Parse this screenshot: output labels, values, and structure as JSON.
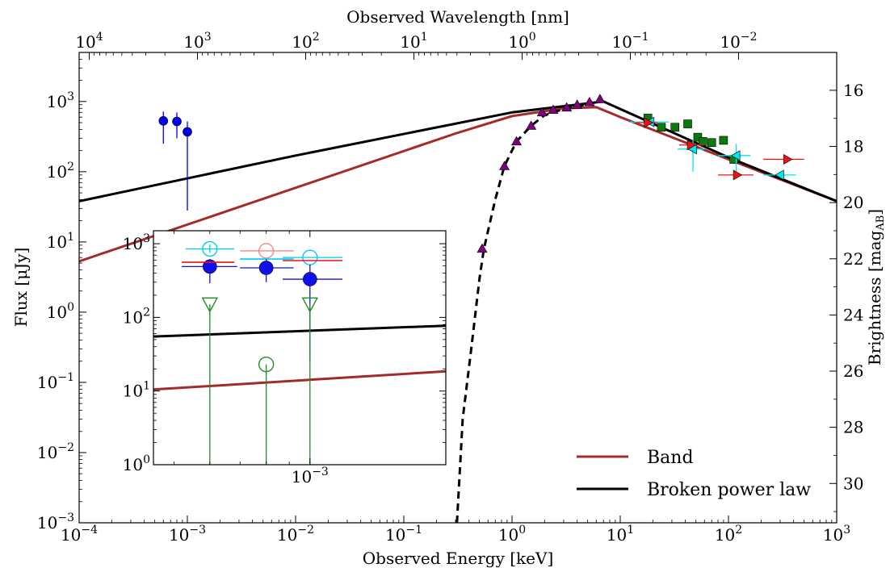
{
  "chart_data": {
    "type": "scatter",
    "title": "",
    "xlabel": "Observed Energy [keV]",
    "ylabel": "Flux [μJy]",
    "x2label": "Observed Wavelength [nm]",
    "y2label": "Brightness [mag",
    "y2label_sub": "AB",
    "y2label_close": "]",
    "xscale": "log",
    "yscale": "log",
    "xlim": [
      0.0001,
      1000
    ],
    "ylim": [
      0.001,
      5000
    ],
    "x_ticks": [
      {
        "value": 0.0001,
        "base": "10",
        "exp": "−4"
      },
      {
        "value": 0.001,
        "base": "10",
        "exp": "−3"
      },
      {
        "value": 0.01,
        "base": "10",
        "exp": "−2"
      },
      {
        "value": 0.1,
        "base": "10",
        "exp": "−1"
      },
      {
        "value": 1,
        "base": "10",
        "exp": "0"
      },
      {
        "value": 10,
        "base": "10",
        "exp": "1"
      },
      {
        "value": 100,
        "base": "10",
        "exp": "2"
      },
      {
        "value": 1000,
        "base": "10",
        "exp": "3"
      }
    ],
    "y_ticks": [
      {
        "value": 0.001,
        "base": "10",
        "exp": "−3"
      },
      {
        "value": 0.01,
        "base": "10",
        "exp": "−2"
      },
      {
        "value": 0.1,
        "base": "10",
        "exp": "−1"
      },
      {
        "value": 1,
        "base": "10",
        "exp": "0"
      },
      {
        "value": 10,
        "base": "10",
        "exp": "1"
      },
      {
        "value": 100,
        "base": "10",
        "exp": "2"
      },
      {
        "value": 1000,
        "base": "10",
        "exp": "3"
      }
    ],
    "wavelength_ticks_nm": [
      {
        "value": 10000,
        "base": "10",
        "exp": "4"
      },
      {
        "value": 1000,
        "base": "10",
        "exp": "3"
      },
      {
        "value": 100,
        "base": "10",
        "exp": "2"
      },
      {
        "value": 10,
        "base": "10",
        "exp": "1"
      },
      {
        "value": 1,
        "base": "10",
        "exp": "0"
      },
      {
        "value": 0.1,
        "base": "10",
        "exp": "−1"
      },
      {
        "value": 0.01,
        "base": "10",
        "exp": "−2"
      }
    ],
    "mag_ticks": [
      16,
      18,
      20,
      22,
      24,
      26,
      28,
      30
    ],
    "legend_position": "lower-right",
    "series": [
      {
        "name": "Band",
        "kind": "line",
        "color": "#a52a2a",
        "points": [
          [
            0.0001,
            5.3
          ],
          [
            0.3,
            350
          ],
          [
            1,
            620
          ],
          [
            3,
            800
          ],
          [
            6,
            830
          ],
          [
            10,
            600
          ],
          [
            100,
            150
          ],
          [
            1000,
            38
          ]
        ]
      },
      {
        "name": "Broken power law",
        "kind": "line",
        "color": "#000000",
        "points": [
          [
            0.0001,
            38
          ],
          [
            0.01,
            170
          ],
          [
            1,
            700
          ],
          [
            7,
            1000
          ],
          [
            100,
            160
          ],
          [
            1000,
            38
          ]
        ]
      },
      {
        "kind": "dashed-line",
        "color": "#000000",
        "points": [
          [
            0.31,
            0.001
          ],
          [
            0.35,
            0.03
          ],
          [
            0.42,
            0.3
          ],
          [
            0.5,
            3
          ],
          [
            0.55,
            8
          ],
          [
            0.7,
            40
          ],
          [
            0.85,
            120
          ],
          [
            1.1,
            270
          ],
          [
            1.5,
            450
          ],
          [
            2,
            640
          ],
          [
            3,
            780
          ],
          [
            5,
            920
          ],
          [
            6.5,
            1000
          ]
        ]
      },
      {
        "kind": "points",
        "marker": "circle",
        "color": "#0000ee",
        "points": [
          {
            "x": 0.0006,
            "y": 530,
            "ylo": 250,
            "yhi": 720
          },
          {
            "x": 0.0008,
            "y": 520,
            "ylo": 300,
            "yhi": 700
          },
          {
            "x": 0.001,
            "y": 370,
            "ylo": 28,
            "yhi": 520
          }
        ]
      },
      {
        "kind": "points",
        "marker": "triangle-up",
        "color": "#800080",
        "points": [
          {
            "x": 0.53,
            "y": 8
          },
          {
            "x": 0.85,
            "y": 120
          },
          {
            "x": 1.1,
            "y": 270
          },
          {
            "x": 1.5,
            "y": 450
          },
          {
            "x": 1.9,
            "y": 700
          },
          {
            "x": 2.4,
            "y": 760
          },
          {
            "x": 3.2,
            "y": 820
          },
          {
            "x": 4,
            "y": 900
          },
          {
            "x": 5.2,
            "y": 980
          },
          {
            "x": 6.5,
            "y": 1080
          }
        ]
      },
      {
        "kind": "points",
        "marker": "square",
        "color": "#0a7a0a",
        "points": [
          {
            "x": 18,
            "y": 580
          },
          {
            "x": 24,
            "y": 430
          },
          {
            "x": 32,
            "y": 430
          },
          {
            "x": 42,
            "y": 480
          },
          {
            "x": 52,
            "y": 310
          },
          {
            "x": 58,
            "y": 270
          },
          {
            "x": 70,
            "y": 260
          },
          {
            "x": 90,
            "y": 280
          },
          {
            "x": 112,
            "y": 150
          }
        ]
      },
      {
        "kind": "points",
        "marker": "triangle-left",
        "color": "#00e5ee",
        "points": [
          {
            "x": 19,
            "y": 510,
            "xlo": 12,
            "xhi": 28
          },
          {
            "x": 47,
            "y": 210,
            "xlo": 34,
            "xhi": 60,
            "ylo": 100,
            "yhi": 280
          },
          {
            "x": 118,
            "y": 170,
            "xlo": 80,
            "xhi": 160,
            "ylo": 90,
            "yhi": 250
          },
          {
            "x": 300,
            "y": 90,
            "xlo": 210,
            "xhi": 420
          }
        ]
      },
      {
        "kind": "points",
        "marker": "triangle-right",
        "color": "#ee1111",
        "points": [
          {
            "x": 18,
            "y": 500,
            "xlo": 14,
            "xhi": 22
          },
          {
            "x": 45,
            "y": 240,
            "xlo": 35,
            "xhi": 60
          },
          {
            "x": 120,
            "y": 90,
            "xlo": 80,
            "xhi": 170
          },
          {
            "x": 350,
            "y": 150,
            "xlo": 210,
            "xhi": 500
          }
        ]
      }
    ],
    "inset": {
      "xscale": "log",
      "yscale": "log",
      "xlim": [
        0.00045,
        0.002
      ],
      "ylim": [
        1,
        1500
      ],
      "x_tick_label": {
        "value": 0.001,
        "base": "10",
        "exp": "−3"
      },
      "y_ticks": [
        {
          "value": 1,
          "base": "10",
          "exp": "0"
        },
        {
          "value": 10,
          "base": "10",
          "exp": "1"
        },
        {
          "value": 100,
          "base": "10",
          "exp": "2"
        },
        {
          "value": 1000,
          "base": "10",
          "exp": "3"
        }
      ],
      "lines": [
        {
          "name": "Broken power law",
          "color": "#000000",
          "points": [
            [
              0.00045,
              55
            ],
            [
              0.002,
              77
            ]
          ]
        },
        {
          "name": "Band",
          "color": "#a52a2a",
          "points": [
            [
              0.00045,
              10.5
            ],
            [
              0.002,
              18.5
            ]
          ]
        }
      ],
      "points": [
        {
          "x": 0.0006,
          "y": 850,
          "marker": "open-circle",
          "color": "#00ccee",
          "xlo": 0.00053,
          "xhi": 0.00068,
          "ylo": 750,
          "yhi": 980
        },
        {
          "x": 0.0006,
          "y": 490,
          "marker": "circle",
          "color": "#1010ee",
          "xlo": 0.00052,
          "xhi": 0.00069,
          "ylo": 290,
          "yhi": 620
        },
        {
          "x": 0.0006,
          "y": 560,
          "marker": "bar",
          "color": "#ee1111",
          "xlo": 0.00052,
          "xhi": 0.00068
        },
        {
          "x": 0.0006,
          "y": 150,
          "marker": "open-triangle-down",
          "color": "#228b22",
          "ylo": 1
        },
        {
          "x": 0.0008,
          "y": 800,
          "marker": "open-circle",
          "color": "#ee8888",
          "xlo": 0.0007,
          "xhi": 0.00092
        },
        {
          "x": 0.0008,
          "y": 620,
          "marker": "bar",
          "color": "#00ccee",
          "xlo": 0.0007,
          "xhi": 0.00092
        },
        {
          "x": 0.0008,
          "y": 470,
          "marker": "circle",
          "color": "#1010ee",
          "xlo": 0.0007,
          "xhi": 0.00092,
          "ylo": 300,
          "yhi": 620
        },
        {
          "x": 0.0008,
          "y": 23,
          "marker": "open-circle",
          "color": "#228b22",
          "ylo": 1
        },
        {
          "x": 0.001,
          "y": 650,
          "marker": "open-circle",
          "color": "#00ccee",
          "xlo": 0.00087,
          "xhi": 0.00118
        },
        {
          "x": 0.001,
          "y": 590,
          "marker": "bar",
          "color": "#ee1111",
          "xlo": 0.00087,
          "xhi": 0.00118
        },
        {
          "x": 0.001,
          "y": 330,
          "marker": "circle",
          "color": "#1010ee",
          "xlo": 0.00087,
          "xhi": 0.00118,
          "ylo": 26,
          "yhi": 520
        },
        {
          "x": 0.001,
          "y": 150,
          "marker": "open-triangle-down",
          "color": "#228b22",
          "ylo": 1
        }
      ]
    }
  }
}
